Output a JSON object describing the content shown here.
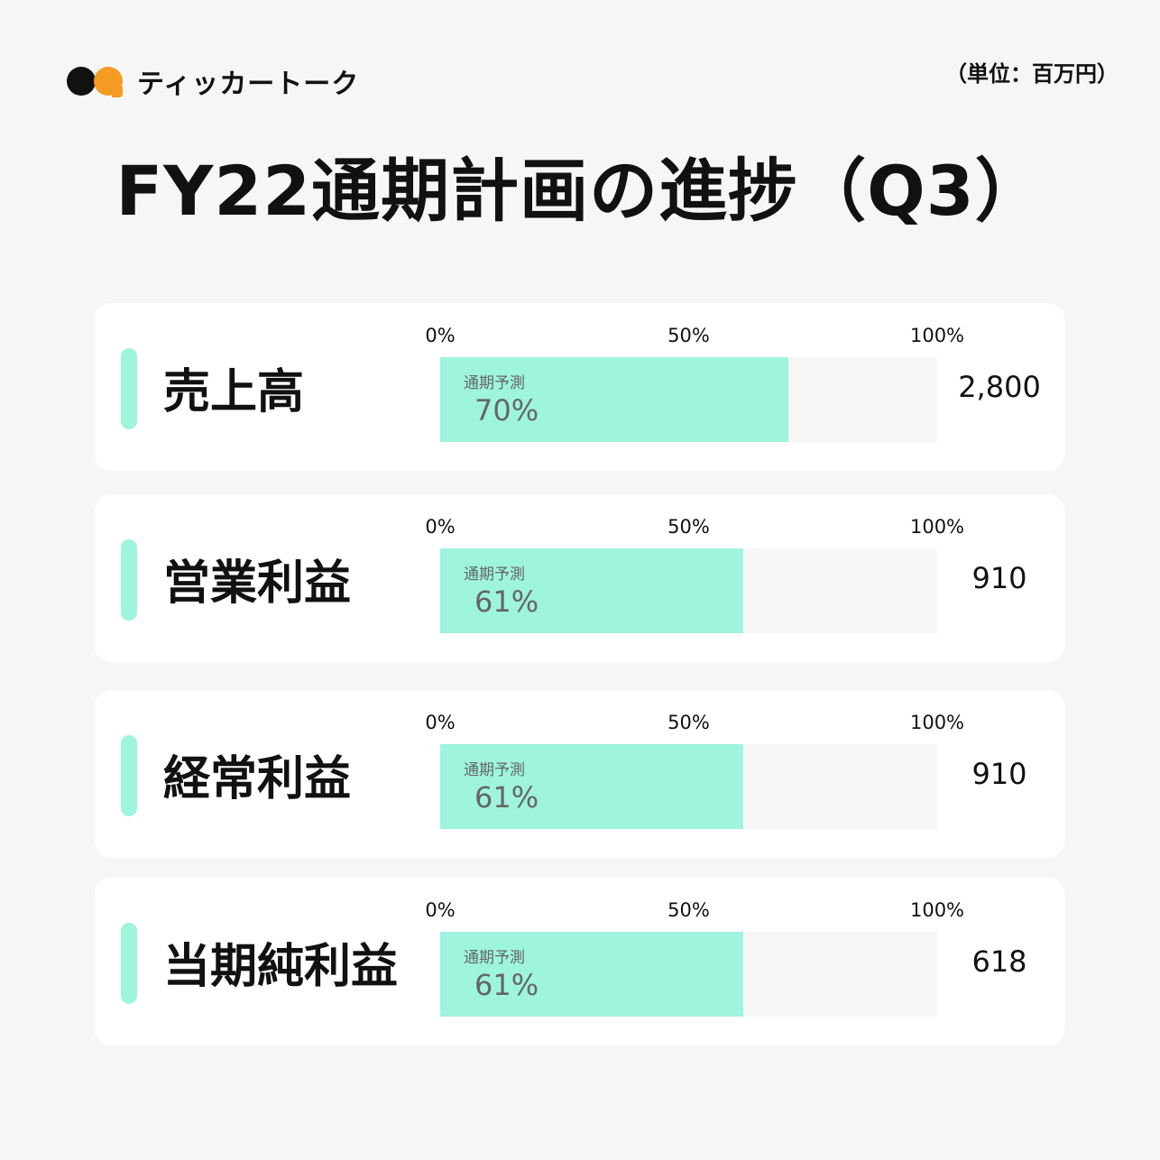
{
  "brand": {
    "name": "ティッカートーク",
    "icon": "chat-bubbles-logo",
    "colors": {
      "black": "#111111",
      "orange": "#f59a23"
    }
  },
  "unit_label": "（単位：百万円）",
  "title": "FY22通期計画の進捗（Q3）",
  "chart_data": {
    "type": "bar",
    "orientation": "horizontal",
    "title": "FY22通期計画の進捗（Q3）",
    "unit": "（単位：百万円）",
    "axis_ticks": [
      "0%",
      "50%",
      "100%"
    ],
    "xlim": [
      0,
      100
    ],
    "bar_caption": "通期予測",
    "fill_color": "#9ef4dd",
    "track_color": "#f6f6f6",
    "rows": [
      {
        "label": "売上高",
        "progress": 70,
        "progress_label": "70%",
        "total": "2,800"
      },
      {
        "label": "営業利益",
        "progress": 61,
        "progress_label": "61%",
        "total": "910"
      },
      {
        "label": "経常利益",
        "progress": 61,
        "progress_label": "61%",
        "total": "910"
      },
      {
        "label": "当期純利益",
        "progress": 61,
        "progress_label": "61%",
        "total": "618"
      }
    ]
  }
}
